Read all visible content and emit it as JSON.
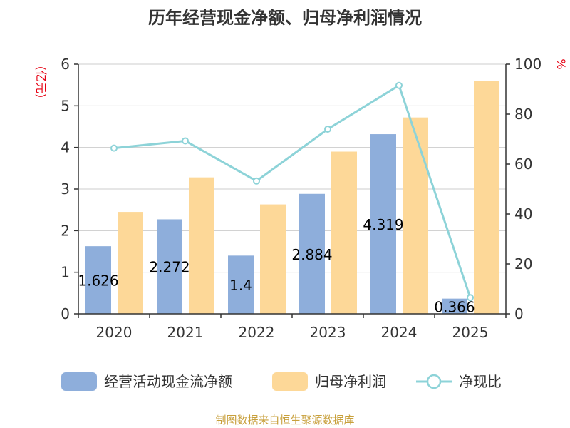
{
  "chart_data": {
    "type": "bar",
    "title": "历年经营现金净额、归母净利润情况",
    "categories": [
      "2020",
      "2021",
      "2022",
      "2023",
      "2024",
      "2025"
    ],
    "series": [
      {
        "name": "经营活动现金流净额",
        "type": "bar",
        "axis": "left",
        "color": "#8eaedb",
        "values": [
          1.626,
          2.272,
          1.4,
          2.884,
          4.319,
          0.366
        ],
        "labels": [
          "1.626",
          "2.272",
          "1.4",
          "2.884",
          "4.319",
          "0.366"
        ]
      },
      {
        "name": "归母净利润",
        "type": "bar",
        "axis": "left",
        "color": "#fdd898",
        "values": [
          2.45,
          3.28,
          2.63,
          3.9,
          4.72,
          5.6
        ]
      },
      {
        "name": "净现比",
        "type": "line",
        "axis": "right",
        "color": "#8dd3d8",
        "values": [
          66.4,
          69.3,
          53.2,
          74.0,
          91.5,
          6.5
        ]
      }
    ],
    "left_axis": {
      "unit": "(亿元)",
      "ylim": [
        0,
        6
      ],
      "ticks": [
        "0",
        "1",
        "2",
        "3",
        "4",
        "5",
        "6"
      ]
    },
    "right_axis": {
      "unit": "%",
      "ylim": [
        0,
        100
      ],
      "ticks": [
        "0",
        "20",
        "40",
        "60",
        "80",
        "100"
      ]
    },
    "grid": true,
    "legend": "bottom",
    "source": "制图数据来自恒生聚源数据库"
  }
}
